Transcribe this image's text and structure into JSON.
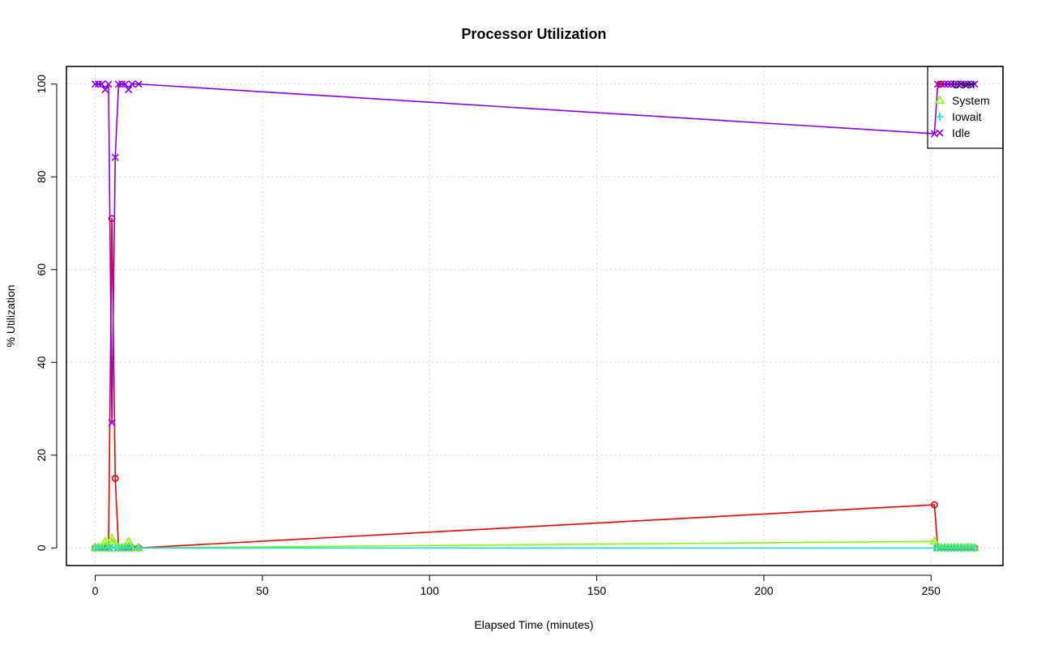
{
  "chart_data": {
    "type": "line",
    "title": "Processor Utilization",
    "xlabel": "Elapsed Time (minutes)",
    "ylabel": "% Utilization",
    "xlim": [
      -8.6,
      271.5
    ],
    "ylim": [
      -3.8,
      103.8
    ],
    "xticks": [
      0,
      50,
      100,
      150,
      200,
      250
    ],
    "yticks": [
      0,
      20,
      40,
      60,
      80,
      100
    ],
    "grid": true,
    "legend_position": "top-right",
    "x": [
      0,
      1,
      2,
      3,
      4,
      5,
      6,
      7,
      8,
      9,
      10,
      11,
      13,
      251,
      252,
      253,
      254,
      255,
      256,
      257,
      258,
      259,
      260,
      261,
      262,
      263
    ],
    "series": [
      {
        "name": "User",
        "color": "#ee0000",
        "marker": "circle",
        "values": [
          0,
          0,
          0,
          0,
          0,
          71,
          15,
          0,
          0,
          0,
          0,
          0,
          0,
          9.3,
          0,
          0,
          0,
          0,
          0,
          0,
          0,
          0,
          0,
          0,
          0,
          0
        ]
      },
      {
        "name": "System",
        "color": "#7fff00",
        "marker": "triangle",
        "values": [
          0,
          0,
          0,
          1.3,
          0,
          2,
          0.8,
          0,
          0,
          0,
          1.3,
          0,
          0,
          1.4,
          0,
          0,
          0,
          0,
          0,
          0,
          0,
          0,
          0,
          0,
          0,
          0
        ]
      },
      {
        "name": "Iowait",
        "color": "#00e5ee",
        "marker": "plus",
        "values": [
          0,
          0,
          0,
          0,
          0,
          0,
          0,
          0,
          0,
          0,
          0,
          0,
          0,
          0,
          0,
          0,
          0,
          0,
          0,
          0,
          0,
          0,
          0,
          0,
          0,
          0
        ]
      },
      {
        "name": "Idle",
        "color": "#8a00ee",
        "marker": "x",
        "values": [
          100,
          100,
          100,
          98.8,
          100,
          27,
          84.2,
          100,
          100,
          100,
          98.8,
          100,
          100,
          89.3,
          100,
          100,
          100,
          100,
          100,
          100,
          100,
          100,
          100,
          100,
          100,
          100
        ]
      }
    ]
  }
}
